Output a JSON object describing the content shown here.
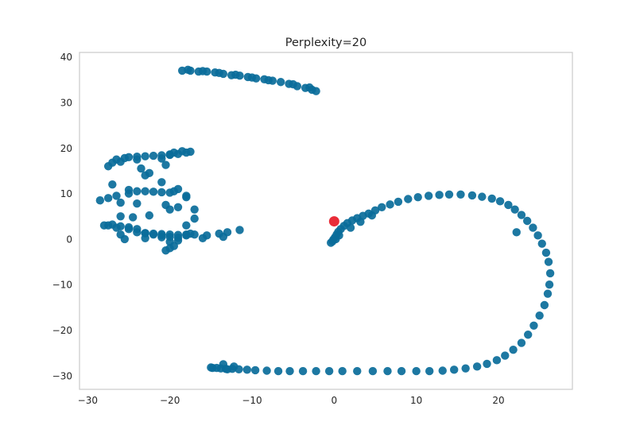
{
  "chart_data": {
    "type": "scatter",
    "title": "Perplexity=20",
    "xlabel": "",
    "ylabel": "",
    "xlim": [
      -31,
      29
    ],
    "ylim": [
      -33,
      41
    ],
    "xticks": [
      -30,
      -20,
      -10,
      0,
      10,
      20
    ],
    "yticks": [
      -30,
      -20,
      -10,
      0,
      10,
      20,
      30,
      40
    ],
    "grid": false,
    "colors": {
      "points": "#0a6d9a",
      "highlight": "#e8212d",
      "spine": "#cccccc",
      "text": "#262626"
    },
    "series": [
      {
        "role": "points",
        "x": [
          -18.5,
          -17.5,
          -16.5,
          -15.5,
          -14.5,
          -13.5,
          -12.5,
          -11.5,
          -10.5,
          -9.5,
          -8.5,
          -7.5,
          -6.5,
          -5.5,
          -4.5,
          -3.5,
          -2.7,
          -2.2,
          -17.8,
          -16,
          -14,
          -12,
          -10,
          -8,
          -5,
          -3,
          -27,
          -26.5,
          -25.5,
          -25,
          -24,
          -23,
          -22,
          -21,
          -20,
          -19,
          -18,
          -17.5,
          -27.5,
          -26,
          -24,
          -21,
          -20,
          -19.5,
          -18.5,
          -23.5,
          -22.5,
          -20.5,
          -28.5,
          -27.5,
          -26.5,
          -25,
          -24,
          -23,
          -22,
          -21,
          -20,
          -19.5,
          -19,
          -18,
          -27,
          -25,
          -23,
          -21,
          -19,
          -26,
          -24,
          -20,
          -18,
          -27.5,
          -26.5,
          -25,
          -24,
          -23,
          -22,
          -21,
          -20,
          -19,
          -18,
          -17.5,
          -26,
          -24.5,
          -22.5,
          -20.5,
          -17,
          -28,
          -27,
          -26,
          -25,
          -24,
          -23,
          -22,
          -21,
          -20,
          -19,
          -18,
          -17,
          -15.5,
          -14,
          -13,
          -11.5,
          -25.5,
          -23,
          -21,
          -20,
          -19,
          -16,
          -13.5,
          -26,
          -18,
          -17,
          -20.5,
          -20,
          -19.5,
          -0.2,
          -0.1,
          0.1,
          0.3,
          0.5,
          0.8,
          1.2,
          1.6,
          2.2,
          2.8,
          3.5,
          4.2,
          5,
          5.8,
          6.8,
          7.8,
          9,
          10.2,
          11.5,
          12.8,
          14,
          15.4,
          16.8,
          18,
          19.2,
          20.2,
          21.2,
          22,
          22.8,
          23.5,
          24.2,
          24.8,
          25.3,
          25.8,
          26.1,
          26.3,
          26.2,
          26,
          25.6,
          25,
          24.3,
          23.6,
          22.8,
          21.8,
          20.8,
          19.8,
          18.6,
          17.4,
          16,
          14.6,
          13.2,
          11.6,
          10,
          8.2,
          6.5,
          4.7,
          2.8,
          1,
          -0.6,
          -2.2,
          -3.8,
          -5.4,
          -6.8,
          -8.2,
          -9.6,
          -10.6,
          -11.6,
          -12.4,
          -13.2,
          -13.8,
          -14.3,
          -14.8,
          -13.5,
          -12.2,
          -13,
          -15,
          22.2,
          -0.4,
          0.2,
          0.6,
          2,
          3.2,
          4.6
        ],
        "y": [
          37,
          37,
          36.8,
          36.8,
          36.6,
          36.3,
          36,
          35.9,
          35.6,
          35.3,
          35.1,
          34.8,
          34.5,
          34.1,
          33.6,
          33.2,
          32.8,
          32.5,
          37.2,
          36.9,
          36.5,
          36.1,
          35.5,
          34.9,
          34,
          33.3,
          16.8,
          17.5,
          17.8,
          18,
          18.1,
          18.2,
          18.3,
          18.4,
          18.5,
          18.7,
          19,
          19.2,
          16,
          17,
          17.5,
          17.7,
          18.6,
          19,
          19.3,
          15.5,
          14.5,
          16.3,
          8.5,
          9,
          9.5,
          10,
          10.5,
          10.5,
          10.4,
          10.3,
          10.2,
          10.5,
          11,
          9.5,
          12,
          10.8,
          14,
          12.5,
          7,
          8,
          7.8,
          6.5,
          9.2,
          3,
          2.5,
          2.2,
          1.5,
          1.3,
          1.2,
          1.1,
          1,
          0.9,
          1,
          1.2,
          5,
          4.8,
          5.2,
          7.5,
          6.5,
          3,
          3.2,
          2.8,
          2.6,
          2.2,
          1.3,
          1,
          0.8,
          0.5,
          0.3,
          0.8,
          1,
          0.8,
          1.2,
          1.5,
          2,
          0,
          0.2,
          0.4,
          -0.6,
          -0.3,
          0.2,
          0.5,
          1,
          3,
          4.5,
          -2.5,
          -2,
          -1.5,
          -0.5,
          -0.1,
          0.4,
          1,
          1.6,
          2.2,
          2.9,
          3.5,
          4.1,
          4.6,
          5.1,
          5.6,
          6.3,
          7,
          7.6,
          8.2,
          8.8,
          9.2,
          9.5,
          9.7,
          9.8,
          9.8,
          9.6,
          9.3,
          8.9,
          8.3,
          7.5,
          6.5,
          5.3,
          4,
          2.5,
          0.8,
          -1,
          -3,
          -5,
          -7.5,
          -10,
          -12,
          -14.5,
          -16.8,
          -19,
          -21,
          -22.8,
          -24.3,
          -25.6,
          -26.6,
          -27.4,
          -28,
          -28.4,
          -28.7,
          -28.9,
          -29,
          -29,
          -29,
          -29,
          -29,
          -29,
          -29,
          -29,
          -29,
          -29,
          -29,
          -29,
          -28.9,
          -28.8,
          -28.7,
          -28.6,
          -28.5,
          -28.5,
          -28.4,
          -28.3,
          -28.3,
          -27.5,
          -28,
          -28.6,
          -28.2,
          1.5,
          -0.8,
          0,
          0.8,
          2.5,
          3.8,
          5.2
        ]
      },
      {
        "role": "highlight",
        "x": [
          0
        ],
        "y": [
          3.9
        ]
      }
    ]
  }
}
